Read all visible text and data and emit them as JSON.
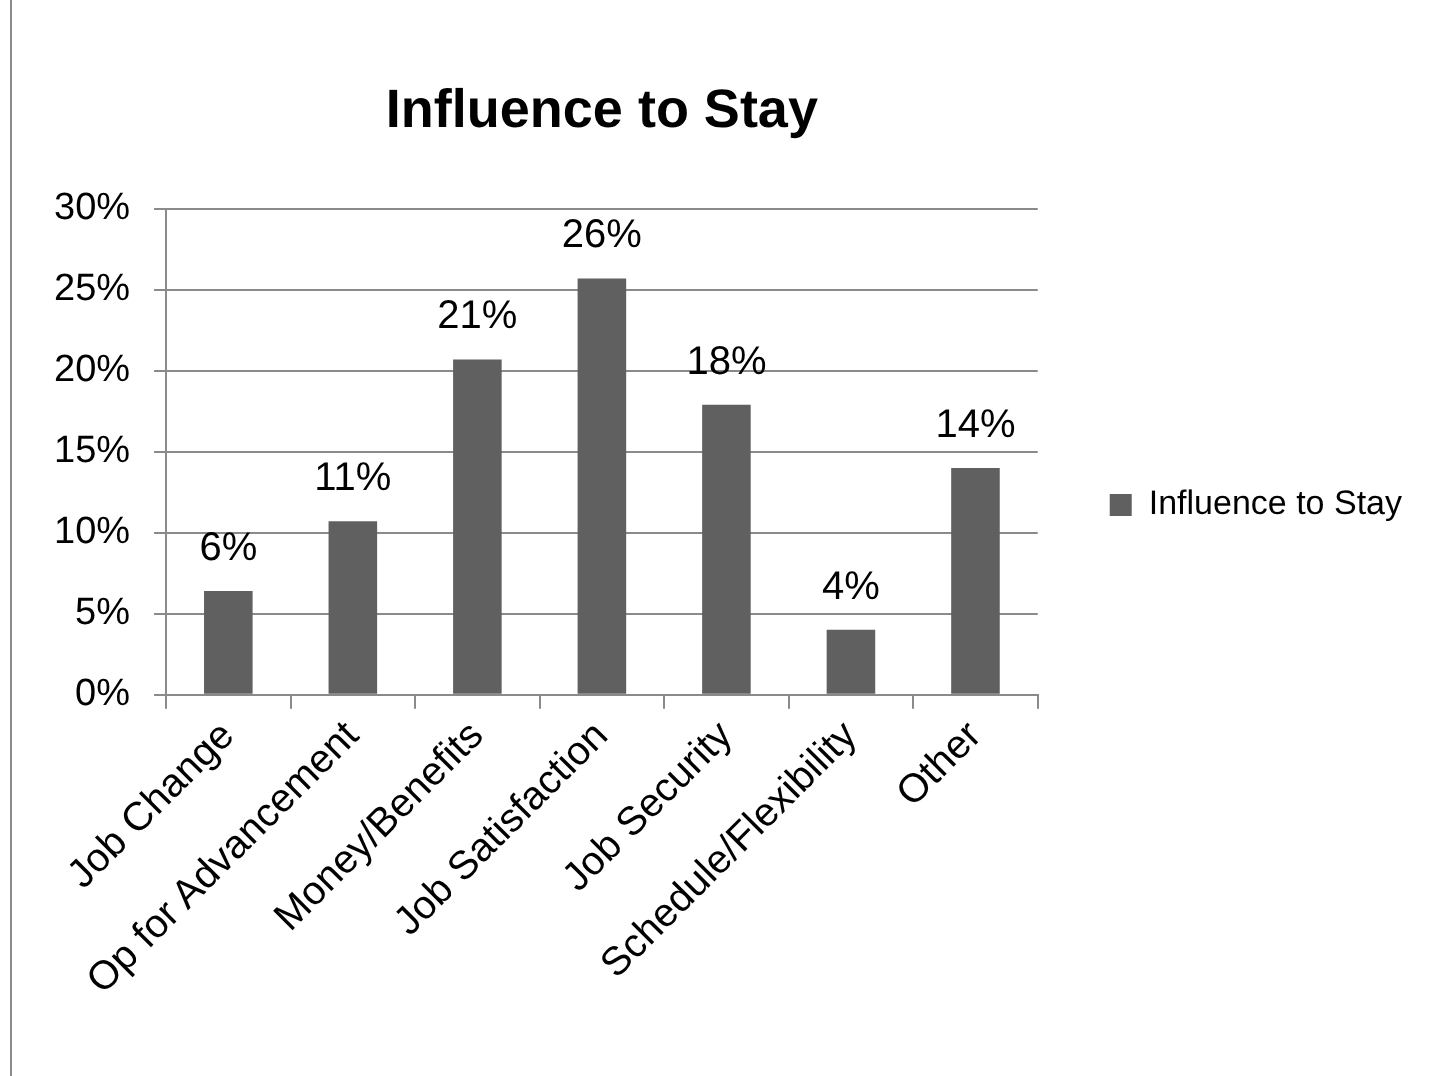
{
  "chart_data": {
    "type": "bar",
    "title": "Influence to Stay",
    "categories": [
      "Job Change",
      "Op for Advancement",
      "Money/Benefits",
      "Job Satisfaction",
      "Job Security",
      "Schedule/Flexibility",
      "Other"
    ],
    "series": [
      {
        "name": "Influence to Stay",
        "color": "#606060",
        "values": [
          6.4,
          10.7,
          20.7,
          25.7,
          17.9,
          4.0,
          14.0
        ],
        "value_labels": [
          "6%",
          "11%",
          "21%",
          "26%",
          "18%",
          "4%",
          "14%"
        ]
      }
    ],
    "ylim": [
      0,
      30
    ],
    "yticks": [
      {
        "value": 0,
        "label": "0%"
      },
      {
        "value": 5,
        "label": "5%"
      },
      {
        "value": 10,
        "label": "10%"
      },
      {
        "value": 15,
        "label": "15%"
      },
      {
        "value": 20,
        "label": "20%"
      },
      {
        "value": 25,
        "label": "25%"
      },
      {
        "value": 30,
        "label": "30%"
      }
    ],
    "grid": "y",
    "legend": "right"
  }
}
